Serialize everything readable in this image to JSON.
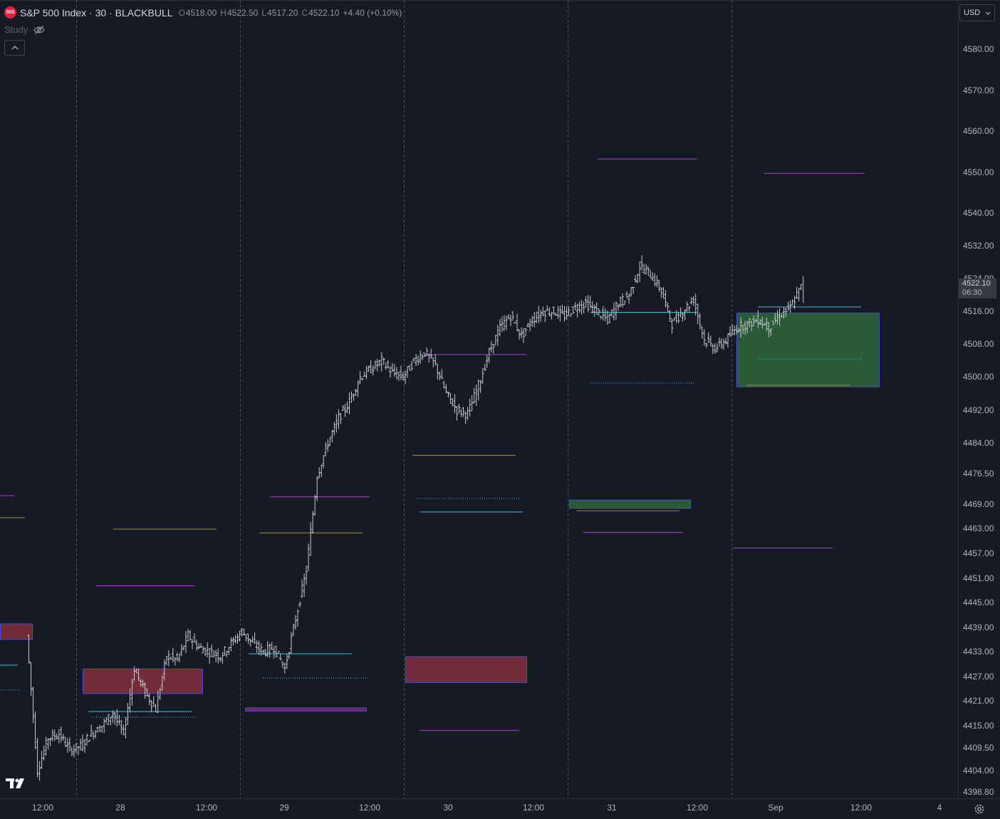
{
  "header": {
    "symbol_badge": "500",
    "title": "S&P 500 Index · 30 · BLACKBULL",
    "open_label": "O",
    "open": "4518.00",
    "high_label": "H",
    "high": "4522.50",
    "low_label": "L",
    "low": "4517.20",
    "close_label": "C",
    "close": "4522.10",
    "change": "+4.40 (+0.10%)"
  },
  "study": {
    "label": "Study",
    "icon": "eye-off-icon"
  },
  "collapse_icon": "chevron-up-icon",
  "currency": {
    "label": "USD",
    "icon": "chevron-down-icon"
  },
  "price_tag": {
    "price": "4522.10",
    "countdown": "06:30"
  },
  "settings_icon": "gear-icon",
  "logo": "tradingview-logo",
  "colors": {
    "background": "#161a25",
    "bar": "#c8cad2",
    "magenta": "#b13ad6",
    "cyan": "#2ec4dc",
    "olive": "#a2922f",
    "red_zone": "#732b38",
    "green_zone": "#2b5a37",
    "zone_border": "#3d52d8"
  },
  "chart_data": {
    "type": "ohlc",
    "symbol": "S&P 500 Index",
    "interval": "30",
    "source": "BLACKBULL",
    "y_axis_ticks": [
      4580.0,
      4570.0,
      4560.0,
      4550.0,
      4540.0,
      4532.0,
      4524.0,
      4516.0,
      4508.0,
      4500.0,
      4492.0,
      4484.0,
      4476.5,
      4469.0,
      4463.0,
      4457.0,
      4451.0,
      4445.0,
      4439.0,
      4433.0,
      4427.0,
      4421.0,
      4415.0,
      4409.5,
      4404.0,
      4398.8
    ],
    "y_axis_labels": [
      "4580.00",
      "4570.00",
      "4560.00",
      "4550.00",
      "4540.00",
      "4532.00",
      "4524.00",
      "4516.00",
      "4508.00",
      "4500.00",
      "4492.00",
      "4484.00",
      "4476.50",
      "4469.00",
      "4463.00",
      "4457.00",
      "4451.00",
      "4445.00",
      "4439.00",
      "4433.00",
      "4427.00",
      "4421.00",
      "4415.00",
      "4409.50",
      "4404.00",
      "4398.80"
    ],
    "x_axis_labels": [
      "12:00",
      "28",
      "12:00",
      "29",
      "12:00",
      "30",
      "12:00",
      "31",
      "12:00",
      "Sep",
      "12:00",
      "4"
    ],
    "last_price": 4522.1,
    "price_path": [
      [
        0,
        4437,
        4398.8
      ],
      [
        1,
        4404
      ],
      [
        2,
        4412
      ],
      [
        3,
        4413
      ],
      [
        4,
        4409
      ],
      [
        5,
        4410
      ],
      [
        6,
        4413
      ],
      [
        7,
        4415
      ],
      [
        8,
        4418
      ],
      [
        9,
        4413
      ],
      [
        10,
        4429
      ],
      [
        11,
        4423
      ],
      [
        12,
        4419
      ],
      [
        13,
        4432
      ],
      [
        14,
        4431
      ],
      [
        15,
        4437
      ],
      [
        16,
        4434
      ],
      [
        17,
        4433
      ],
      [
        18,
        4432
      ],
      [
        19,
        4435
      ],
      [
        20,
        4438
      ],
      [
        21,
        4435
      ],
      [
        22,
        4433
      ],
      [
        23,
        4434
      ],
      [
        24,
        4429
      ],
      [
        25,
        4441
      ],
      [
        26,
        4453
      ],
      [
        27,
        4476
      ],
      [
        28,
        4484
      ],
      [
        29,
        4490
      ],
      [
        30,
        4494
      ],
      [
        31,
        4500
      ],
      [
        32,
        4502
      ],
      [
        33,
        4504
      ],
      [
        34,
        4501
      ],
      [
        35,
        4500
      ],
      [
        36,
        4504
      ],
      [
        37,
        4506
      ],
      [
        38,
        4503
      ],
      [
        39,
        4496
      ],
      [
        40,
        4492
      ],
      [
        41,
        4491
      ],
      [
        42,
        4498
      ],
      [
        43,
        4506
      ],
      [
        44,
        4512
      ],
      [
        45,
        4515
      ],
      [
        46,
        4510
      ],
      [
        47,
        4514
      ],
      [
        48,
        4516
      ],
      [
        49,
        4516
      ],
      [
        50,
        4515
      ],
      [
        51,
        4517
      ],
      [
        52,
        4518
      ],
      [
        53,
        4516
      ],
      [
        54,
        4514
      ],
      [
        55,
        4518
      ],
      [
        56,
        4520
      ],
      [
        57,
        4527
      ],
      [
        58,
        4525
      ],
      [
        59,
        4521
      ],
      [
        60,
        4513
      ],
      [
        61,
        4516
      ],
      [
        62,
        4519
      ],
      [
        63,
        4509
      ],
      [
        64,
        4507
      ],
      [
        65,
        4509
      ],
      [
        66,
        4512
      ],
      [
        67,
        4513
      ],
      [
        68,
        4514
      ],
      [
        69,
        4512
      ],
      [
        70,
        4515
      ],
      [
        71,
        4517
      ],
      [
        72,
        4522
      ]
    ],
    "annotations": {
      "red_zones": [
        [
          4439.8,
          4436.0
        ],
        [
          4428.8,
          4422.8
        ],
        [
          4431.8,
          4425.5
        ],
        [
          4419.3,
          4418.5
        ]
      ],
      "green_zones": [
        [
          4515.6,
          4497.6
        ],
        [
          4470.0,
          4468.0
        ]
      ],
      "magenta_levels": [
        4553.2,
        4549.7,
        4505.5,
        4470.8,
        4449.1,
        4413.8,
        4462.1,
        4458.3
      ],
      "cyan_levels": [
        4517.1,
        4515.8,
        4432.5,
        4467.1,
        4418.4
      ],
      "olive_levels": [
        4498.0,
        4480.9,
        4462.9,
        4462.0,
        4467.4
      ]
    }
  }
}
